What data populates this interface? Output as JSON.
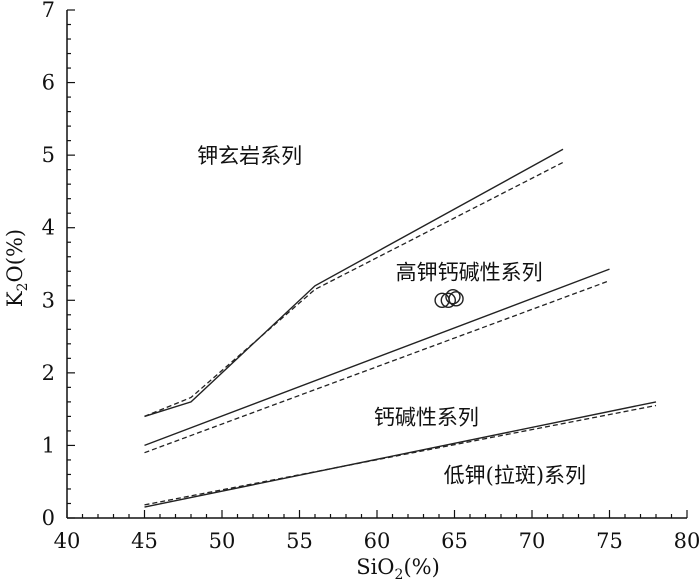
{
  "chart_data": {
    "type": "line",
    "xlabel": {
      "base": "SiO",
      "sub": "2",
      "rest": "(%)"
    },
    "ylabel": {
      "base": "K",
      "sub": "2",
      "rest": "O(%)"
    },
    "xlim": [
      40,
      80
    ],
    "ylim": [
      0,
      7
    ],
    "x_ticks": [
      "40",
      "45",
      "50",
      "55",
      "60",
      "65",
      "70",
      "75",
      "80"
    ],
    "y_ticks": [
      "0",
      "1",
      "2",
      "3",
      "4",
      "5",
      "6",
      "7"
    ],
    "x_minor_step": 1,
    "y_minor_step": 0.2,
    "series": [
      {
        "style": "solid",
        "points": [
          [
            45,
            1.4
          ],
          [
            48,
            1.6
          ],
          [
            56,
            3.2
          ],
          [
            72,
            5.08
          ]
        ]
      },
      {
        "style": "dashed",
        "points": [
          [
            45,
            1.4
          ],
          [
            48,
            1.66
          ],
          [
            56,
            3.15
          ],
          [
            72,
            4.9
          ]
        ]
      },
      {
        "style": "solid",
        "points": [
          [
            45,
            1.0
          ],
          [
            75,
            3.43
          ]
        ]
      },
      {
        "style": "dashed",
        "points": [
          [
            45,
            0.9
          ],
          [
            75,
            3.27
          ]
        ]
      },
      {
        "style": "solid",
        "points": [
          [
            45,
            0.15
          ],
          [
            78,
            1.6
          ]
        ]
      },
      {
        "style": "dashed",
        "points": [
          [
            45,
            0.18
          ],
          [
            78,
            1.55
          ]
        ]
      }
    ],
    "samples": [
      {
        "x": 64.2,
        "y": 3.0
      },
      {
        "x": 64.6,
        "y": 3.0
      },
      {
        "x": 64.9,
        "y": 3.05
      },
      {
        "x": 65.1,
        "y": 3.02
      }
    ],
    "region_labels": [
      {
        "text": "钾玄岩系列",
        "x": 48.4,
        "y": 5.0
      },
      {
        "text": "高钾钙碱性系列",
        "x": 61.2,
        "y": 3.4
      },
      {
        "text": "钙碱性系列",
        "x": 59.8,
        "y": 1.4
      },
      {
        "text": "低钾(拉斑)系列",
        "x": 64.3,
        "y": 0.6
      }
    ]
  }
}
